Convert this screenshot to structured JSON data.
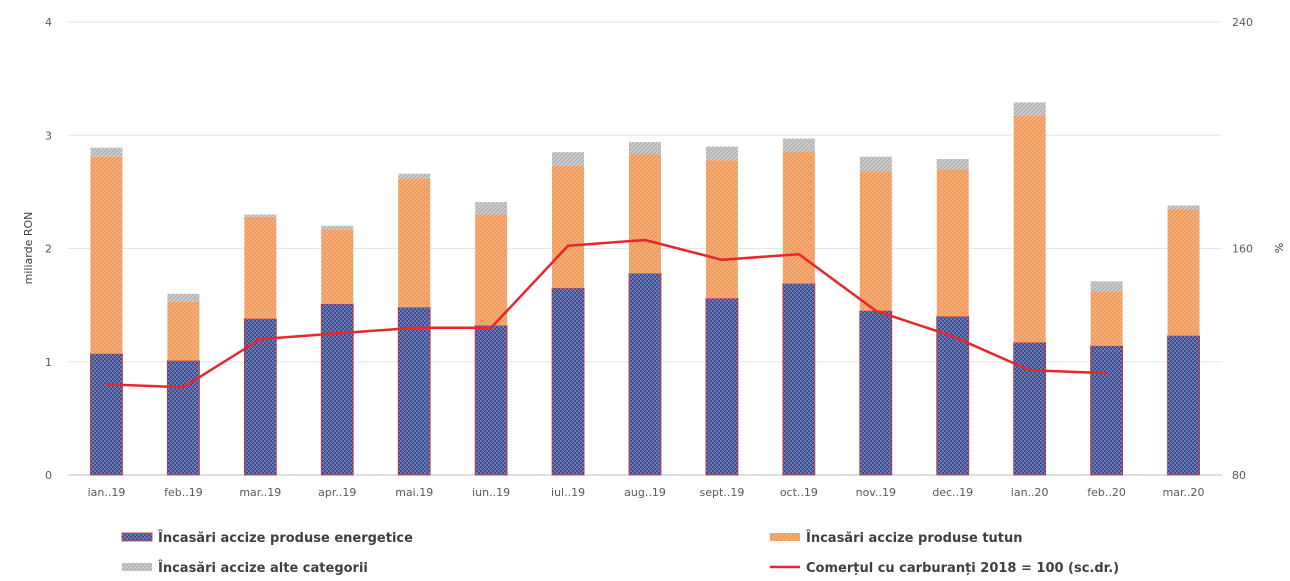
{
  "chart_data": {
    "type": "bar",
    "stacked": true,
    "categories": [
      "ian..19",
      "feb..19",
      "mar..19",
      "apr..19",
      "mai.19",
      "iun..19",
      "iul..19",
      "aug..19",
      "sept..19",
      "oct..19",
      "nov..19",
      "dec..19",
      "ian..20",
      "feb..20",
      "mar..20"
    ],
    "series": [
      {
        "name": "Încasări accize produse energetice",
        "kind": "bar",
        "axis": "left",
        "color": "#4A5A9C",
        "values": [
          1.07,
          1.01,
          1.38,
          1.51,
          1.48,
          1.32,
          1.65,
          1.78,
          1.56,
          1.69,
          1.45,
          1.4,
          1.17,
          1.14,
          1.23
        ]
      },
      {
        "name": "Încasări accize produse tutun",
        "kind": "bar",
        "axis": "left",
        "color": "#F4A46A",
        "values": [
          1.74,
          0.52,
          0.9,
          0.66,
          1.14,
          0.98,
          1.08,
          1.05,
          1.22,
          1.17,
          1.23,
          1.3,
          2.0,
          0.48,
          1.11
        ]
      },
      {
        "name": "Încasări accize alte categorii",
        "kind": "bar",
        "axis": "left",
        "color": "#BFBFBF",
        "values": [
          0.08,
          0.07,
          0.02,
          0.03,
          0.04,
          0.11,
          0.12,
          0.11,
          0.12,
          0.11,
          0.13,
          0.09,
          0.12,
          0.09,
          0.04
        ]
      },
      {
        "name": "Comerțul cu carburanți 2018 = 100 (sc.dr.)",
        "kind": "line",
        "axis": "right",
        "color": "#E8262C",
        "values": [
          112,
          111,
          128,
          130,
          132,
          132,
          161,
          163,
          156,
          158,
          138,
          129,
          117,
          116,
          null
        ]
      }
    ],
    "y_left": {
      "label": "miliarde RON",
      "range": [
        0,
        4
      ],
      "ticks": [
        0,
        1,
        2,
        3,
        4
      ]
    },
    "y_right": {
      "label": "%",
      "range": [
        80,
        240
      ],
      "ticks": [
        80,
        160,
        240
      ]
    },
    "grid": true,
    "legend_position": "bottom"
  }
}
